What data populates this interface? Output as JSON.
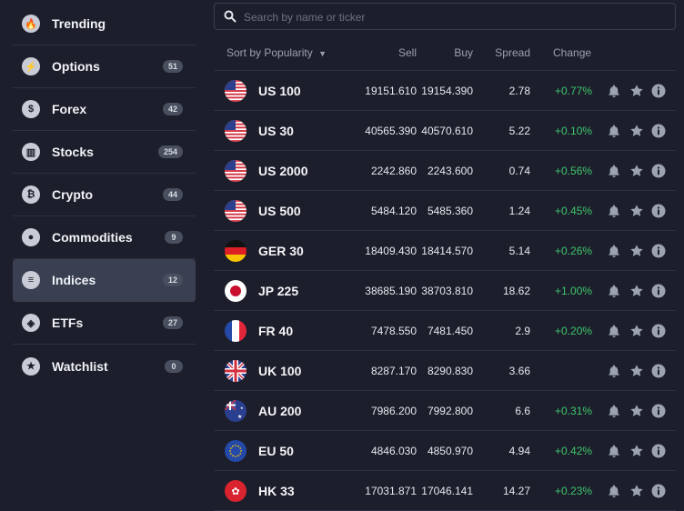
{
  "sidebar": {
    "items": [
      {
        "label": "Trending",
        "badge": "",
        "icon": "flame-icon",
        "glyph": "🔥"
      },
      {
        "label": "Options",
        "badge": "51",
        "icon": "lightning-icon",
        "glyph": "⚡"
      },
      {
        "label": "Forex",
        "badge": "42",
        "icon": "dollar-icon",
        "glyph": "$"
      },
      {
        "label": "Stocks",
        "badge": "254",
        "icon": "bank-icon",
        "glyph": "▥"
      },
      {
        "label": "Crypto",
        "badge": "44",
        "icon": "bitcoin-icon",
        "glyph": "₿"
      },
      {
        "label": "Commodities",
        "badge": "9",
        "icon": "drop-icon",
        "glyph": "●"
      },
      {
        "label": "Indices",
        "badge": "12",
        "icon": "indices-icon",
        "glyph": "≡",
        "active": true
      },
      {
        "label": "ETFs",
        "badge": "27",
        "icon": "cube-icon",
        "glyph": "◈"
      },
      {
        "label": "Watchlist",
        "badge": "0",
        "icon": "star-icon",
        "glyph": "★"
      }
    ]
  },
  "search": {
    "placeholder": "Search by name or ticker",
    "value": ""
  },
  "table": {
    "headers": {
      "sort": "Sort by Popularity",
      "sell": "Sell",
      "buy": "Buy",
      "spread": "Spread",
      "change": "Change"
    },
    "rows": [
      {
        "name": "US 100",
        "flag": "us",
        "sell": "19151.610",
        "buy": "19154.390",
        "spread": "2.78",
        "change": "+0.77%"
      },
      {
        "name": "US 30",
        "flag": "us",
        "sell": "40565.390",
        "buy": "40570.610",
        "spread": "5.22",
        "change": "+0.10%"
      },
      {
        "name": "US 2000",
        "flag": "us",
        "sell": "2242.860",
        "buy": "2243.600",
        "spread": "0.74",
        "change": "+0.56%"
      },
      {
        "name": "US 500",
        "flag": "us",
        "sell": "5484.120",
        "buy": "5485.360",
        "spread": "1.24",
        "change": "+0.45%"
      },
      {
        "name": "GER 30",
        "flag": "de",
        "sell": "18409.430",
        "buy": "18414.570",
        "spread": "5.14",
        "change": "+0.26%"
      },
      {
        "name": "JP 225",
        "flag": "jp",
        "sell": "38685.190",
        "buy": "38703.810",
        "spread": "18.62",
        "change": "+1.00%"
      },
      {
        "name": "FR 40",
        "flag": "fr",
        "sell": "7478.550",
        "buy": "7481.450",
        "spread": "2.9",
        "change": "+0.20%"
      },
      {
        "name": "UK 100",
        "flag": "uk",
        "sell": "8287.170",
        "buy": "8290.830",
        "spread": "3.66",
        "change": ""
      },
      {
        "name": "AU 200",
        "flag": "au",
        "sell": "7986.200",
        "buy": "7992.800",
        "spread": "6.6",
        "change": "+0.31%"
      },
      {
        "name": "EU 50",
        "flag": "eu",
        "sell": "4846.030",
        "buy": "4850.970",
        "spread": "4.94",
        "change": "+0.42%"
      },
      {
        "name": "HK 33",
        "flag": "hk",
        "sell": "17031.871",
        "buy": "17046.141",
        "spread": "14.27",
        "change": "+0.23%"
      }
    ]
  },
  "colors": {
    "background": "#1c1f2b",
    "positive": "#3ec46d",
    "active_item": "#3a3f52"
  }
}
